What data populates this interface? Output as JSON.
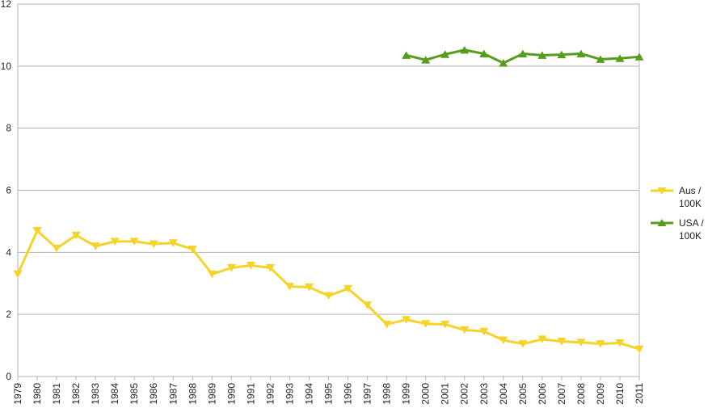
{
  "chart_data": {
    "type": "line",
    "title": "",
    "xlabel": "",
    "ylabel": "",
    "ylim": [
      0,
      12
    ],
    "yticks": [
      "0",
      "2",
      "4",
      "6",
      "8",
      "10",
      "12"
    ],
    "categories": [
      "1979",
      "1980",
      "1981",
      "1982",
      "1983",
      "1984",
      "1985",
      "1986",
      "1987",
      "1988",
      "1989",
      "1990",
      "1991",
      "1992",
      "1993",
      "1994",
      "1995",
      "1996",
      "1997",
      "1998",
      "1999",
      "2000",
      "2001",
      "2002",
      "2003",
      "2004",
      "2005",
      "2006",
      "2007",
      "2008",
      "2009",
      "2010",
      "2011"
    ],
    "grid": true,
    "legend_position": "right",
    "series": [
      {
        "name_lines": [
          "Aus /",
          "100K"
        ],
        "color": "#f5d328",
        "marker": "triangle-down",
        "values": [
          3.3,
          4.7,
          4.13,
          4.55,
          4.2,
          4.35,
          4.35,
          4.27,
          4.3,
          4.1,
          3.3,
          3.5,
          3.58,
          3.5,
          2.9,
          2.88,
          2.6,
          2.83,
          2.3,
          1.68,
          1.83,
          1.7,
          1.68,
          1.5,
          1.45,
          1.17,
          1.05,
          1.2,
          1.13,
          1.1,
          1.05,
          1.08,
          0.88
        ]
      },
      {
        "name_lines": [
          "USA /",
          "100K"
        ],
        "color": "#579d1c",
        "marker": "triangle-up",
        "values": [
          null,
          null,
          null,
          null,
          null,
          null,
          null,
          null,
          null,
          null,
          null,
          null,
          null,
          null,
          null,
          null,
          null,
          null,
          null,
          null,
          10.35,
          10.2,
          10.38,
          10.52,
          10.4,
          10.1,
          10.4,
          10.35,
          10.37,
          10.4,
          10.22,
          10.25,
          10.3
        ]
      }
    ]
  }
}
